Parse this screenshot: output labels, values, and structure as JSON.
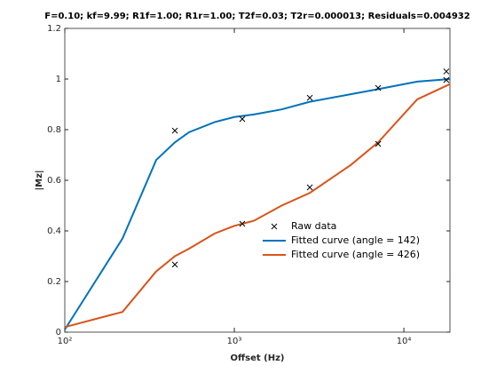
{
  "chart_data": {
    "type": "line",
    "title": "F=0.10; kf=9.99; R1f=1.00; R1r=1.00; T2f=0.03; T2r=0.000013; Residuals=0.004932",
    "xlabel": "Offset (Hz)",
    "ylabel": "|Mz|",
    "xscale": "log",
    "xlim": [
      100,
      18700
    ],
    "ylim": [
      0,
      1.2
    ],
    "xticks": [
      {
        "value": 100,
        "label": "10²"
      },
      {
        "value": 1000,
        "label": "10³"
      },
      {
        "value": 10000,
        "label": "10⁴"
      }
    ],
    "yticks": [
      0,
      0.2,
      0.4,
      0.6,
      0.8,
      {
        "value": 1,
        "label": "1"
      },
      1.2
    ],
    "grid": false,
    "legend": "inside-lower-right",
    "scatter": {
      "name": "Raw data",
      "color": "#000000",
      "x": [
        446,
        1114,
        2786,
        7050,
        17800,
        446,
        1114,
        2786,
        7050,
        17800
      ],
      "values": [
        0.796,
        0.842,
        0.926,
        0.965,
        1.03,
        0.267,
        0.428,
        0.572,
        0.744,
        0.996
      ]
    },
    "x": [
      100,
      219,
      346,
      446,
      541,
      767,
      1000,
      1304,
      1900,
      2786,
      4850,
      7050,
      12000,
      18700
    ],
    "series": [
      {
        "name": "Fitted curve (angle = 142)",
        "color": "#0072bd",
        "values": [
          0.01,
          0.37,
          0.68,
          0.75,
          0.79,
          0.83,
          0.85,
          0.86,
          0.88,
          0.91,
          0.94,
          0.96,
          0.99,
          1.0
        ]
      },
      {
        "name": "Fitted curve (angle = 426)",
        "color": "#d95319",
        "values": [
          0.02,
          0.08,
          0.24,
          0.3,
          0.33,
          0.39,
          0.42,
          0.44,
          0.5,
          0.55,
          0.66,
          0.75,
          0.92,
          0.98
        ]
      }
    ]
  }
}
